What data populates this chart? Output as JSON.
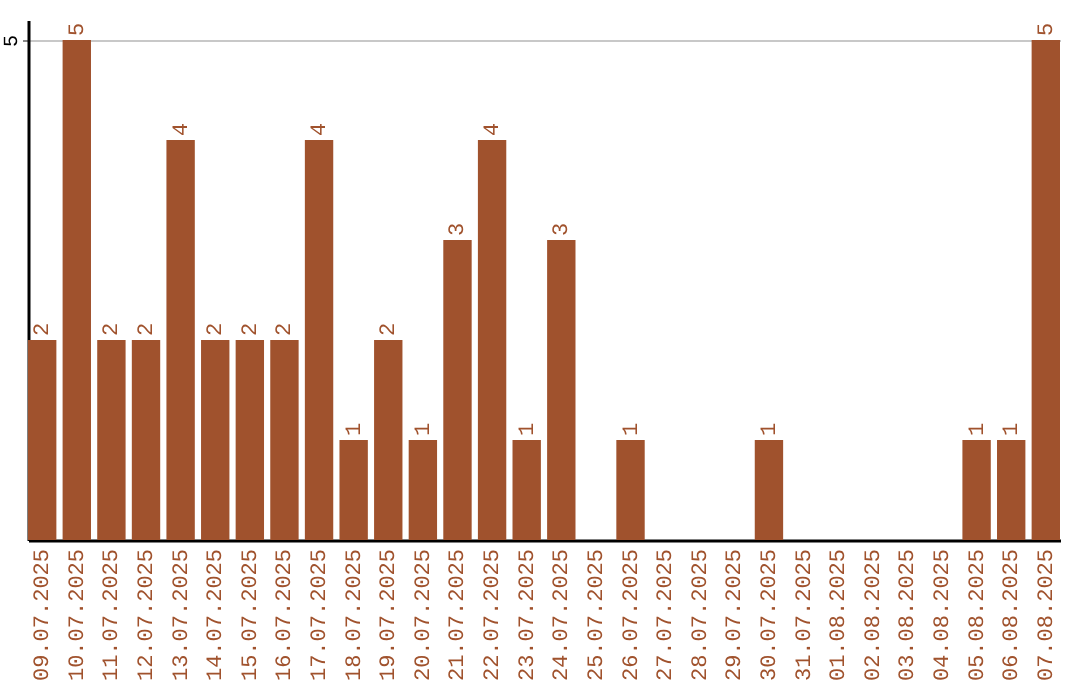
{
  "chart_data": {
    "type": "bar",
    "categories": [
      "09.07.2025",
      "10.07.2025",
      "11.07.2025",
      "12.07.2025",
      "13.07.2025",
      "14.07.2025",
      "15.07.2025",
      "16.07.2025",
      "17.07.2025",
      "18.07.2025",
      "19.07.2025",
      "20.07.2025",
      "21.07.2025",
      "22.07.2025",
      "23.07.2025",
      "24.07.2025",
      "25.07.2025",
      "26.07.2025",
      "27.07.2025",
      "28.07.2025",
      "29.07.2025",
      "30.07.2025",
      "31.07.2025",
      "01.08.2025",
      "02.08.2025",
      "03.08.2025",
      "04.08.2025",
      "05.08.2025",
      "06.08.2025",
      "07.08.2025"
    ],
    "values": [
      2,
      5,
      2,
      2,
      4,
      2,
      2,
      2,
      4,
      1,
      2,
      1,
      3,
      4,
      1,
      3,
      0,
      1,
      0,
      0,
      0,
      1,
      0,
      0,
      0,
      0,
      0,
      1,
      1,
      5
    ],
    "value_labels": [
      "2",
      "5",
      "2",
      "2",
      "4",
      "2",
      "2",
      "2",
      "4",
      "1",
      "2",
      "1",
      "3",
      "4",
      "1",
      "3",
      null,
      "1",
      null,
      null,
      null,
      "1",
      null,
      null,
      null,
      null,
      null,
      "1",
      "1",
      "5"
    ],
    "color": "#a0522d",
    "ylim": [
      0,
      5.2
    ],
    "yticks": [
      5
    ],
    "grid": "y"
  }
}
